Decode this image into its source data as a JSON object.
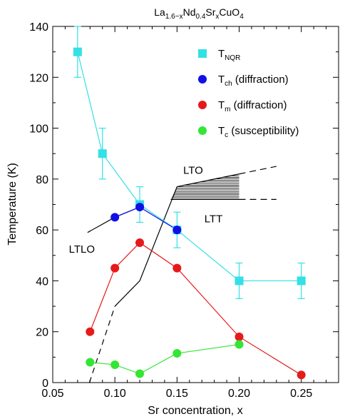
{
  "chart_data": {
    "type": "scatter",
    "title": {
      "parts": [
        {
          "t": "La",
          "sub": false
        },
        {
          "t": "1.6−x",
          "sub": true
        },
        {
          "t": "Nd",
          "sub": false
        },
        {
          "t": "0.4",
          "sub": true
        },
        {
          "t": "Sr",
          "sub": false
        },
        {
          "t": "x",
          "sub": true
        },
        {
          "t": "CuO",
          "sub": false
        },
        {
          "t": "4",
          "sub": true
        }
      ]
    },
    "xlabel": "Sr concentration, x",
    "ylabel": "Temperature (K)",
    "xlim": [
      0.05,
      0.28
    ],
    "ylim": [
      0,
      140
    ],
    "xticks": [
      0.05,
      0.1,
      0.15,
      0.2,
      0.25
    ],
    "xtick_labels": [
      "0.05",
      "0.10",
      "0.15",
      "0.20",
      "0.25"
    ],
    "yticks": [
      0,
      20,
      40,
      60,
      80,
      100,
      120,
      140
    ],
    "ytick_labels": [
      "0",
      "20",
      "40",
      "60",
      "80",
      "100",
      "120",
      "140"
    ],
    "grid": false,
    "legend_position": "top-right",
    "series": [
      {
        "key": "tnqr",
        "label_main": "T",
        "label_sub": "NQR",
        "label_rest": "",
        "color": "#33E0E6",
        "marker": "square",
        "connect": true,
        "x": [
          0.07,
          0.09,
          0.12,
          0.15,
          0.2,
          0.25
        ],
        "y": [
          130,
          90,
          70,
          60,
          40,
          40
        ],
        "err": [
          10,
          10,
          7,
          7,
          7,
          7
        ]
      },
      {
        "key": "tch",
        "label_main": "T",
        "label_sub": "ch",
        "label_rest": " (diffraction)",
        "color": "#1010E6",
        "marker": "circle",
        "connect": true,
        "x": [
          0.1,
          0.12,
          0.15
        ],
        "y": [
          65,
          69,
          60
        ]
      },
      {
        "key": "tm",
        "label_main": "T",
        "label_sub": "m",
        "label_rest": " (diffraction)",
        "color": "#E61A1A",
        "marker": "circle",
        "connect": true,
        "x": [
          0.08,
          0.1,
          0.12,
          0.15,
          0.2,
          0.25
        ],
        "y": [
          20,
          45,
          55,
          45,
          18,
          3
        ]
      },
      {
        "key": "tc",
        "label_main": "T",
        "label_sub": "c",
        "label_rest": " (susceptibility)",
        "color": "#33E633",
        "marker": "circle",
        "connect": true,
        "x": [
          0.08,
          0.1,
          0.12,
          0.15,
          0.2
        ],
        "y": [
          8,
          7,
          3.5,
          11.5,
          15
        ]
      }
    ],
    "phase_lines": {
      "ltlo_curve": [
        [
          0.078,
          59
        ],
        [
          0.1,
          65
        ],
        [
          0.12,
          69
        ]
      ],
      "structural_dashed": [
        [
          0.0795,
          0
        ],
        [
          0.1,
          30
        ]
      ],
      "structural_solid": [
        [
          0.1,
          30
        ],
        [
          0.12,
          40
        ],
        [
          0.15,
          77
        ]
      ],
      "lto_solid_upper": [
        [
          0.15,
          77
        ],
        [
          0.2,
          82
        ]
      ],
      "lto_dashed_upper": [
        [
          0.2,
          82
        ],
        [
          0.23,
          85
        ]
      ],
      "ltt_solid_lower": [
        [
          0.145,
          72
        ],
        [
          0.2,
          72
        ]
      ],
      "ltt_dashed_lower": [
        [
          0.2,
          72
        ],
        [
          0.23,
          72
        ]
      ],
      "hatch_region": [
        [
          0.15,
          77
        ],
        [
          0.2,
          82
        ],
        [
          0.2,
          72
        ],
        [
          0.145,
          72
        ]
      ]
    },
    "annotations": [
      {
        "text": "LTO",
        "x": 0.155,
        "y": 82
      },
      {
        "text": "LTT",
        "x": 0.172,
        "y": 63
      },
      {
        "text": "LTLO",
        "x": 0.063,
        "y": 51
      }
    ]
  }
}
